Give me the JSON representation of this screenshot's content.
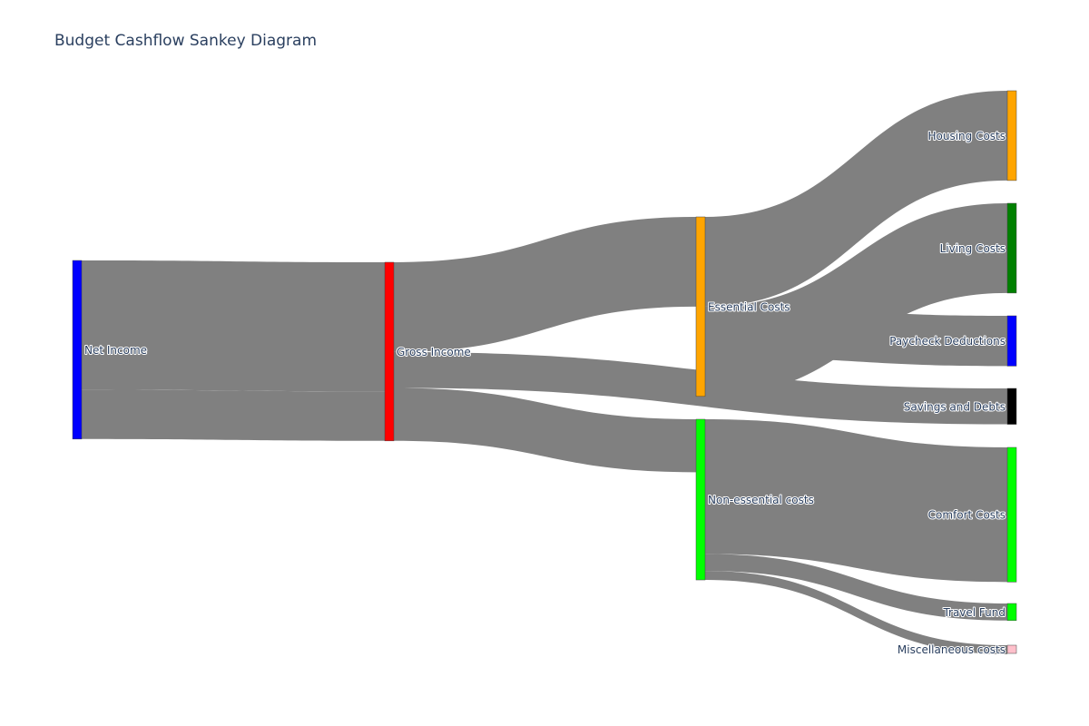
{
  "chart_title": "Budget Cashflow Sankey Diagram",
  "chart_data": {
    "type": "sankey",
    "title": "Budget Cashflow Sankey Diagram",
    "link_color": "#808080",
    "nodes": [
      {
        "id": "net_income",
        "label": "Net Income",
        "column": 0,
        "color": "#0000ff"
      },
      {
        "id": "gross_income",
        "label": "Gross Income",
        "column": 1,
        "color": "#ff0000"
      },
      {
        "id": "essential",
        "label": "Essential Costs",
        "column": 2,
        "color": "#ffa500"
      },
      {
        "id": "nonessential",
        "label": "Non-essential costs",
        "column": 2,
        "color": "#00ff00"
      },
      {
        "id": "housing",
        "label": "Housing Costs",
        "column": 3,
        "color": "#ffa500"
      },
      {
        "id": "living",
        "label": "Living Costs",
        "column": 3,
        "color": "#008000"
      },
      {
        "id": "paycheck",
        "label": "Paycheck Deductions",
        "column": 3,
        "color": "#0000ff"
      },
      {
        "id": "savings",
        "label": "Savings and Debts",
        "column": 3,
        "color": "#000000"
      },
      {
        "id": "comfort",
        "label": "Comfort Costs",
        "column": 3,
        "color": "#00ff00"
      },
      {
        "id": "travel",
        "label": "Travel Fund",
        "column": 3,
        "color": "#00ff00"
      },
      {
        "id": "misc",
        "label": "Miscellaneous costs",
        "column": 3,
        "color": "#ffc0cb"
      }
    ],
    "links": [
      {
        "source": "net_income",
        "target": "gross_income",
        "value": 1440
      },
      {
        "source": "net_income",
        "target": "gross_income",
        "value": 550
      },
      {
        "source": "gross_income",
        "target": "essential",
        "value": 1000
      },
      {
        "source": "gross_income",
        "target": "savings",
        "value": 400
      },
      {
        "source": "gross_income",
        "target": "nonessential",
        "value": 590
      },
      {
        "source": "essential",
        "target": "housing",
        "value": 1000
      },
      {
        "source": "essential",
        "target": "living",
        "value": 1000
      },
      {
        "source": "paycheck",
        "target": "essential",
        "value": 560
      },
      {
        "source": "nonessential",
        "target": "comfort",
        "value": 1500
      },
      {
        "source": "nonessential",
        "target": "travel",
        "value": 190
      },
      {
        "source": "nonessential",
        "target": "misc",
        "value": 100
      }
    ]
  }
}
